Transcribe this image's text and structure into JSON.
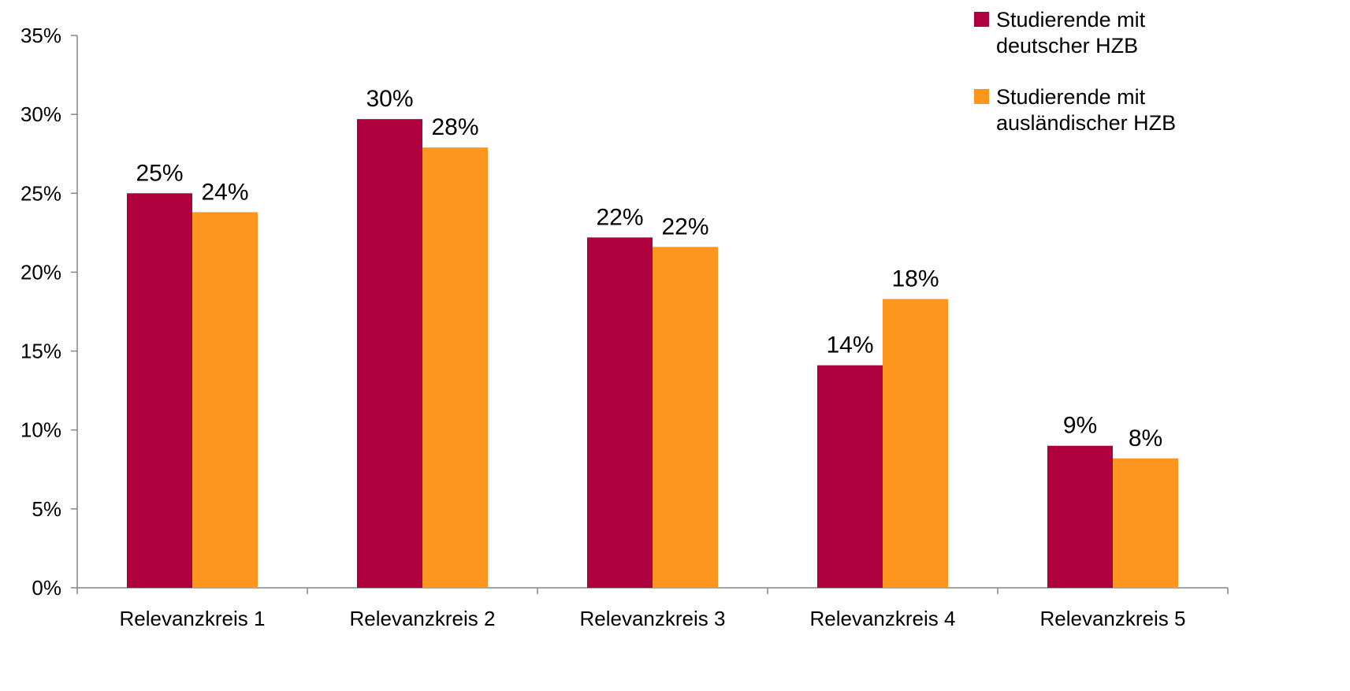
{
  "chart_data": {
    "type": "bar",
    "title": "",
    "xlabel": "",
    "ylabel": "",
    "ylim": [
      0,
      0.35
    ],
    "yticks": [
      "0%",
      "5%",
      "10%",
      "15%",
      "20%",
      "25%",
      "30%",
      "35%"
    ],
    "grid": false,
    "legend_position": "top-right",
    "categories": [
      "Relevanzkreis 1",
      "Relevanzkreis 2",
      "Relevanzkreis 3",
      "Relevanzkreis 4",
      "Relevanzkreis 5"
    ],
    "series": [
      {
        "name": "Studierende mit deutscher HZB",
        "legend_lines": [
          "Studierende mit",
          "deutscher HZB"
        ],
        "color": "#ad003c",
        "values": [
          0.25,
          0.297,
          0.222,
          0.141,
          0.09
        ],
        "labels": [
          "25%",
          "30%",
          "22%",
          "14%",
          "9%"
        ]
      },
      {
        "name": "Studierende mit ausländischer HZB",
        "legend_lines": [
          "Studierende mit",
          "ausländischer HZB"
        ],
        "color": "#fe951f",
        "values": [
          0.238,
          0.279,
          0.216,
          0.183,
          0.082
        ],
        "labels": [
          "24%",
          "28%",
          "22%",
          "18%",
          "8%"
        ]
      }
    ]
  }
}
